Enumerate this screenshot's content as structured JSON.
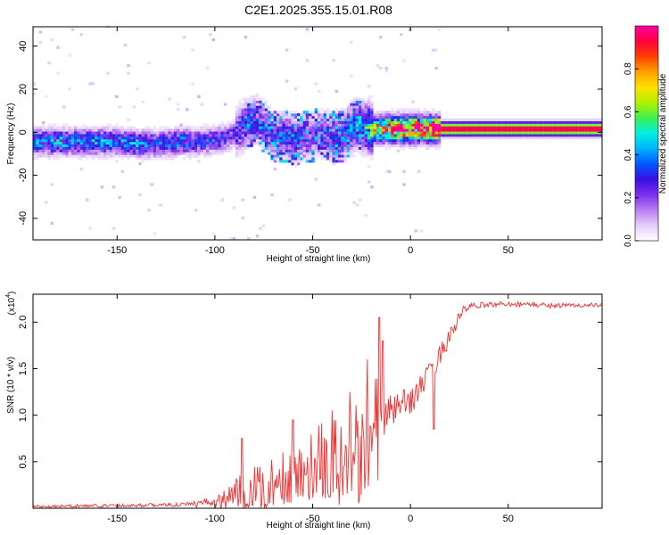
{
  "title": "C2E1.2025.355.15.01.R08",
  "chart_data": [
    {
      "type": "heatmap",
      "xlabel": "Height of straight line (km)",
      "ylabel": "Frequency (Hz)",
      "xlim": [
        -193,
        98
      ],
      "ylim": [
        -50,
        49
      ],
      "x_ticks": [
        "-150",
        "-100",
        "-50",
        "0",
        "50"
      ],
      "y_ticks": [
        "-40",
        "-20",
        "0",
        "20",
        "40"
      ],
      "colorbar": {
        "label": "Normalized spectral amplitude",
        "ticks": [
          "0.0",
          "0.2",
          "0.4",
          "0.6",
          "0.8"
        ],
        "range": [
          0,
          1
        ],
        "colormap": [
          "#ffffff",
          "#e6cef8",
          "#b87ef0",
          "#7b2ff0",
          "#3a10e0",
          "#0057ff",
          "#00b4ff",
          "#00f0e0",
          "#3cf050",
          "#b4f000",
          "#ffe000",
          "#ffa000",
          "#ff4000",
          "#ff0040",
          "#ff00a0"
        ]
      },
      "ridge": {
        "x": [
          -193,
          -180,
          -170,
          -160,
          -150,
          -140,
          -130,
          -120,
          -110,
          -100,
          -95,
          -90,
          -85,
          -80,
          -75,
          -70,
          -65,
          -60,
          -55,
          -50,
          -45,
          -40,
          -35,
          -30,
          -28,
          -25,
          -20,
          -15,
          -10,
          -5,
          0,
          5,
          10,
          15,
          20,
          40,
          60,
          80,
          98
        ],
        "freq": [
          -5,
          -5,
          -5,
          -5,
          -5,
          -6,
          -6,
          -5,
          -5,
          -4,
          -3,
          -1,
          3,
          5,
          2,
          -3,
          -2,
          -4,
          -2,
          -2,
          -1,
          -3,
          -2,
          2,
          3,
          2,
          1,
          1,
          1,
          1,
          1,
          1,
          1,
          1,
          1,
          1,
          1,
          1,
          1
        ],
        "amplitude": [
          0.35,
          0.4,
          0.35,
          0.4,
          0.35,
          0.4,
          0.3,
          0.35,
          0.3,
          0.3,
          0.25,
          0.25,
          0.3,
          0.25,
          0.25,
          0.25,
          0.3,
          0.25,
          0.25,
          0.2,
          0.25,
          0.25,
          0.3,
          0.35,
          0.4,
          0.45,
          0.6,
          0.8,
          0.9,
          0.9,
          0.95,
          0.9,
          0.95,
          1.0,
          1.0,
          1.0,
          1.0,
          1.0,
          1.0
        ]
      }
    },
    {
      "type": "line",
      "xlabel": "Height of straight line (km)",
      "ylabel": "SNR (10 * v/v)",
      "y_multiplier": "(x10",
      "y_multiplier_exp": "4",
      "xlim": [
        -193,
        98
      ],
      "ylim": [
        0,
        2.3
      ],
      "x_ticks": [
        "-150",
        "-100",
        "-50",
        "0",
        "50"
      ],
      "y_ticks": [
        "0.5",
        "1.0",
        "1.5",
        "2.0"
      ],
      "color": "#ee3333",
      "trend": {
        "x": [
          -193,
          -150,
          -110,
          -100,
          -90,
          -80,
          -70,
          -60,
          -50,
          -40,
          -30,
          -20,
          -15,
          -10,
          0,
          10,
          20,
          25,
          28,
          35,
          50,
          70,
          98
        ],
        "y": [
          0.02,
          0.03,
          0.04,
          0.08,
          0.15,
          0.22,
          0.28,
          0.35,
          0.45,
          0.55,
          0.6,
          0.65,
          0.9,
          1.05,
          1.15,
          1.45,
          1.85,
          2.05,
          2.15,
          2.18,
          2.2,
          2.18,
          2.18
        ]
      },
      "noise": {
        "x": [
          -193,
          -120,
          -100,
          -90,
          -70,
          -50,
          -30,
          -16,
          -14,
          -10,
          0,
          10,
          20,
          25,
          35,
          98
        ],
        "amp": [
          0.015,
          0.02,
          0.05,
          0.12,
          0.18,
          0.25,
          0.3,
          0.45,
          0.2,
          0.18,
          0.15,
          0.12,
          0.1,
          0.06,
          0.03,
          0.025
        ]
      },
      "spikes": [
        {
          "x": -86,
          "y": 0.75
        },
        {
          "x": -60,
          "y": 0.95
        },
        {
          "x": -40,
          "y": 1.05
        },
        {
          "x": -31,
          "y": 1.25
        },
        {
          "x": -22,
          "y": 1.6
        },
        {
          "x": -16,
          "y": 2.05
        },
        {
          "x": -14,
          "y": 1.8
        },
        {
          "x": 12,
          "y": 0.85
        }
      ]
    }
  ]
}
